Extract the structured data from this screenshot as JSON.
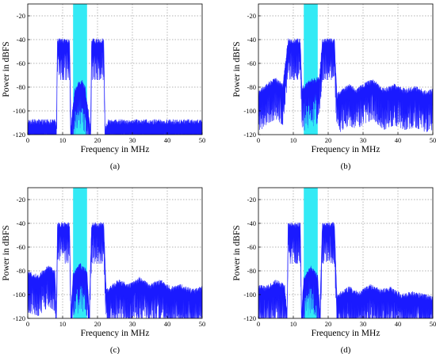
{
  "figure": {
    "panels": [
      {
        "label": "(a)"
      },
      {
        "label": "(b)"
      },
      {
        "label": "(c)"
      },
      {
        "label": "(d)"
      }
    ]
  },
  "colors": {
    "spectrum": "#1a1aff",
    "highlight_band": "#33eaf5",
    "grid": "#9a9a9a",
    "axes": "#000000"
  },
  "chart_data": [
    {
      "type": "area",
      "panel_label": "(a)",
      "xlabel": "Frequency in MHz",
      "ylabel": "Power in dBFS",
      "xlim": [
        0,
        50
      ],
      "ylim": [
        -120,
        -10
      ],
      "xticks": [
        0,
        10,
        20,
        30,
        40,
        50
      ],
      "yticks": [
        -20,
        -40,
        -60,
        -80,
        -100,
        -120
      ],
      "grid": true,
      "highlight_band_mhz": [
        13,
        17
      ],
      "spectrum_mhz_dbfs": [
        [
          0,
          -112
        ],
        [
          8,
          -112
        ],
        [
          8.2,
          -118
        ],
        [
          8.5,
          -44
        ],
        [
          12,
          -44
        ],
        [
          12.4,
          -118
        ],
        [
          13,
          -98
        ],
        [
          13.5,
          -86
        ],
        [
          14.5,
          -80
        ],
        [
          15.5,
          -78
        ],
        [
          16.5,
          -84
        ],
        [
          17,
          -96
        ],
        [
          18,
          -118
        ],
        [
          18.3,
          -44
        ],
        [
          21.8,
          -44
        ],
        [
          22.2,
          -118
        ],
        [
          23,
          -112
        ],
        [
          50,
          -112
        ]
      ]
    },
    {
      "type": "area",
      "panel_label": "(b)",
      "xlabel": "Frequency in MHz",
      "ylabel": "Power in dBFS",
      "xlim": [
        0,
        50
      ],
      "ylim": [
        -120,
        -10
      ],
      "xticks": [
        0,
        10,
        20,
        30,
        40,
        50
      ],
      "yticks": [
        -20,
        -40,
        -60,
        -80,
        -100,
        -120
      ],
      "grid": true,
      "highlight_band_mhz": [
        13,
        17
      ],
      "spectrum_mhz_dbfs": [
        [
          0,
          -88
        ],
        [
          3,
          -80
        ],
        [
          5,
          -77
        ],
        [
          7,
          -82
        ],
        [
          8.5,
          -44
        ],
        [
          12,
          -44
        ],
        [
          12.5,
          -84
        ],
        [
          15,
          -78
        ],
        [
          17.5,
          -76
        ],
        [
          18.3,
          -44
        ],
        [
          21.8,
          -44
        ],
        [
          22.5,
          -90
        ],
        [
          26,
          -82
        ],
        [
          28,
          -86
        ],
        [
          31,
          -80
        ],
        [
          33,
          -78
        ],
        [
          36,
          -86
        ],
        [
          39,
          -82
        ],
        [
          42,
          -86
        ],
        [
          45,
          -84
        ],
        [
          48,
          -88
        ],
        [
          50,
          -86
        ]
      ]
    },
    {
      "type": "area",
      "panel_label": "(c)",
      "xlabel": "Frequency in MHz",
      "ylabel": "Power in dBFS",
      "xlim": [
        0,
        50
      ],
      "ylim": [
        -120,
        -10
      ],
      "xticks": [
        0,
        10,
        20,
        30,
        40,
        50
      ],
      "yticks": [
        -20,
        -40,
        -60,
        -80,
        -100,
        -120
      ],
      "grid": true,
      "highlight_band_mhz": [
        13,
        17
      ],
      "spectrum_mhz_dbfs": [
        [
          0,
          -85
        ],
        [
          3,
          -88
        ],
        [
          6,
          -80
        ],
        [
          7.8,
          -84
        ],
        [
          8.2,
          -118
        ],
        [
          8.5,
          -44
        ],
        [
          12,
          -44
        ],
        [
          12.4,
          -118
        ],
        [
          13,
          -86
        ],
        [
          15,
          -78
        ],
        [
          17,
          -84
        ],
        [
          17.6,
          -118
        ],
        [
          18.3,
          -44
        ],
        [
          21.8,
          -44
        ],
        [
          22.5,
          -100
        ],
        [
          26,
          -92
        ],
        [
          29,
          -96
        ],
        [
          32,
          -90
        ],
        [
          35,
          -96
        ],
        [
          38,
          -92
        ],
        [
          41,
          -98
        ],
        [
          44,
          -96
        ],
        [
          47,
          -100
        ],
        [
          50,
          -98
        ]
      ]
    },
    {
      "type": "area",
      "panel_label": "(d)",
      "xlabel": "Frequency in MHz",
      "ylabel": "Power in dBFS",
      "xlim": [
        0,
        50
      ],
      "ylim": [
        -120,
        -10
      ],
      "xticks": [
        0,
        10,
        20,
        30,
        40,
        50
      ],
      "yticks": [
        -20,
        -40,
        -60,
        -80,
        -100,
        -120
      ],
      "grid": true,
      "highlight_band_mhz": [
        13,
        17
      ],
      "spectrum_mhz_dbfs": [
        [
          0,
          -96
        ],
        [
          2,
          -98
        ],
        [
          5,
          -92
        ],
        [
          7.5,
          -96
        ],
        [
          8.2,
          -118
        ],
        [
          8.5,
          -44
        ],
        [
          12,
          -44
        ],
        [
          12.4,
          -118
        ],
        [
          13,
          -90
        ],
        [
          15,
          -80
        ],
        [
          17,
          -88
        ],
        [
          17.6,
          -118
        ],
        [
          18.3,
          -44
        ],
        [
          21.8,
          -44
        ],
        [
          22.5,
          -104
        ],
        [
          26,
          -98
        ],
        [
          29,
          -102
        ],
        [
          32,
          -96
        ],
        [
          35,
          -100
        ],
        [
          38,
          -98
        ],
        [
          41,
          -104
        ],
        [
          44,
          -102
        ],
        [
          47,
          -104
        ],
        [
          50,
          -106
        ]
      ]
    }
  ]
}
